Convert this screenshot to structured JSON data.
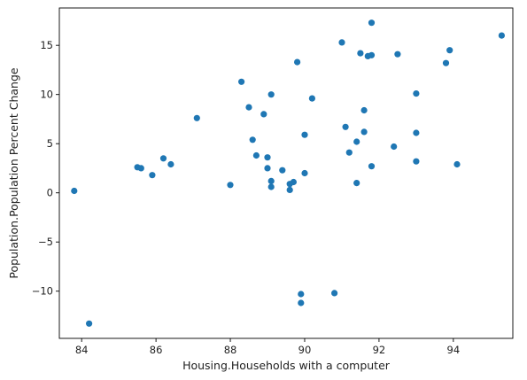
{
  "chart_data": {
    "type": "scatter",
    "xlabel": "Housing.Households with a computer",
    "ylabel": "Population.Population Percent Change",
    "xlim": [
      83.4,
      95.6
    ],
    "ylim": [
      -14.8,
      18.8
    ],
    "xticks": [
      84,
      86,
      88,
      90,
      92,
      94
    ],
    "yticks": [
      -10,
      -5,
      0,
      5,
      10,
      15
    ],
    "point_color": "#1f77b4",
    "grid": false,
    "points": [
      {
        "x": 83.8,
        "y": 0.2
      },
      {
        "x": 84.2,
        "y": -13.3
      },
      {
        "x": 85.5,
        "y": 2.6
      },
      {
        "x": 85.6,
        "y": 2.5
      },
      {
        "x": 85.9,
        "y": 1.8
      },
      {
        "x": 86.2,
        "y": 3.5
      },
      {
        "x": 86.4,
        "y": 2.9
      },
      {
        "x": 87.1,
        "y": 7.6
      },
      {
        "x": 88.0,
        "y": 0.8
      },
      {
        "x": 88.3,
        "y": 11.3
      },
      {
        "x": 88.5,
        "y": 8.7
      },
      {
        "x": 88.6,
        "y": 5.4
      },
      {
        "x": 88.7,
        "y": 3.8
      },
      {
        "x": 88.9,
        "y": 8.0
      },
      {
        "x": 89.0,
        "y": 3.6
      },
      {
        "x": 89.0,
        "y": 2.5
      },
      {
        "x": 89.1,
        "y": 1.2
      },
      {
        "x": 89.1,
        "y": 0.6
      },
      {
        "x": 89.1,
        "y": 10.0
      },
      {
        "x": 89.4,
        "y": 2.3
      },
      {
        "x": 89.6,
        "y": 0.9
      },
      {
        "x": 89.6,
        "y": 0.3
      },
      {
        "x": 89.7,
        "y": 1.1
      },
      {
        "x": 89.8,
        "y": 13.3
      },
      {
        "x": 89.9,
        "y": -10.3
      },
      {
        "x": 89.9,
        "y": -11.2
      },
      {
        "x": 90.0,
        "y": 5.9
      },
      {
        "x": 90.0,
        "y": 2.0
      },
      {
        "x": 90.2,
        "y": 9.6
      },
      {
        "x": 90.8,
        "y": -10.2
      },
      {
        "x": 91.0,
        "y": 15.3
      },
      {
        "x": 91.1,
        "y": 6.7
      },
      {
        "x": 91.2,
        "y": 4.1
      },
      {
        "x": 91.4,
        "y": 5.2
      },
      {
        "x": 91.4,
        "y": 1.0
      },
      {
        "x": 91.5,
        "y": 14.2
      },
      {
        "x": 91.6,
        "y": 8.4
      },
      {
        "x": 91.6,
        "y": 6.2
      },
      {
        "x": 91.7,
        "y": 13.9
      },
      {
        "x": 91.8,
        "y": 14.0
      },
      {
        "x": 91.8,
        "y": 17.3
      },
      {
        "x": 91.8,
        "y": 2.7
      },
      {
        "x": 92.4,
        "y": 4.7
      },
      {
        "x": 92.5,
        "y": 14.1
      },
      {
        "x": 93.0,
        "y": 10.1
      },
      {
        "x": 93.0,
        "y": 6.1
      },
      {
        "x": 93.0,
        "y": 3.2
      },
      {
        "x": 93.8,
        "y": 13.2
      },
      {
        "x": 93.9,
        "y": 14.5
      },
      {
        "x": 94.1,
        "y": 2.9
      },
      {
        "x": 95.3,
        "y": 16.0
      }
    ]
  }
}
